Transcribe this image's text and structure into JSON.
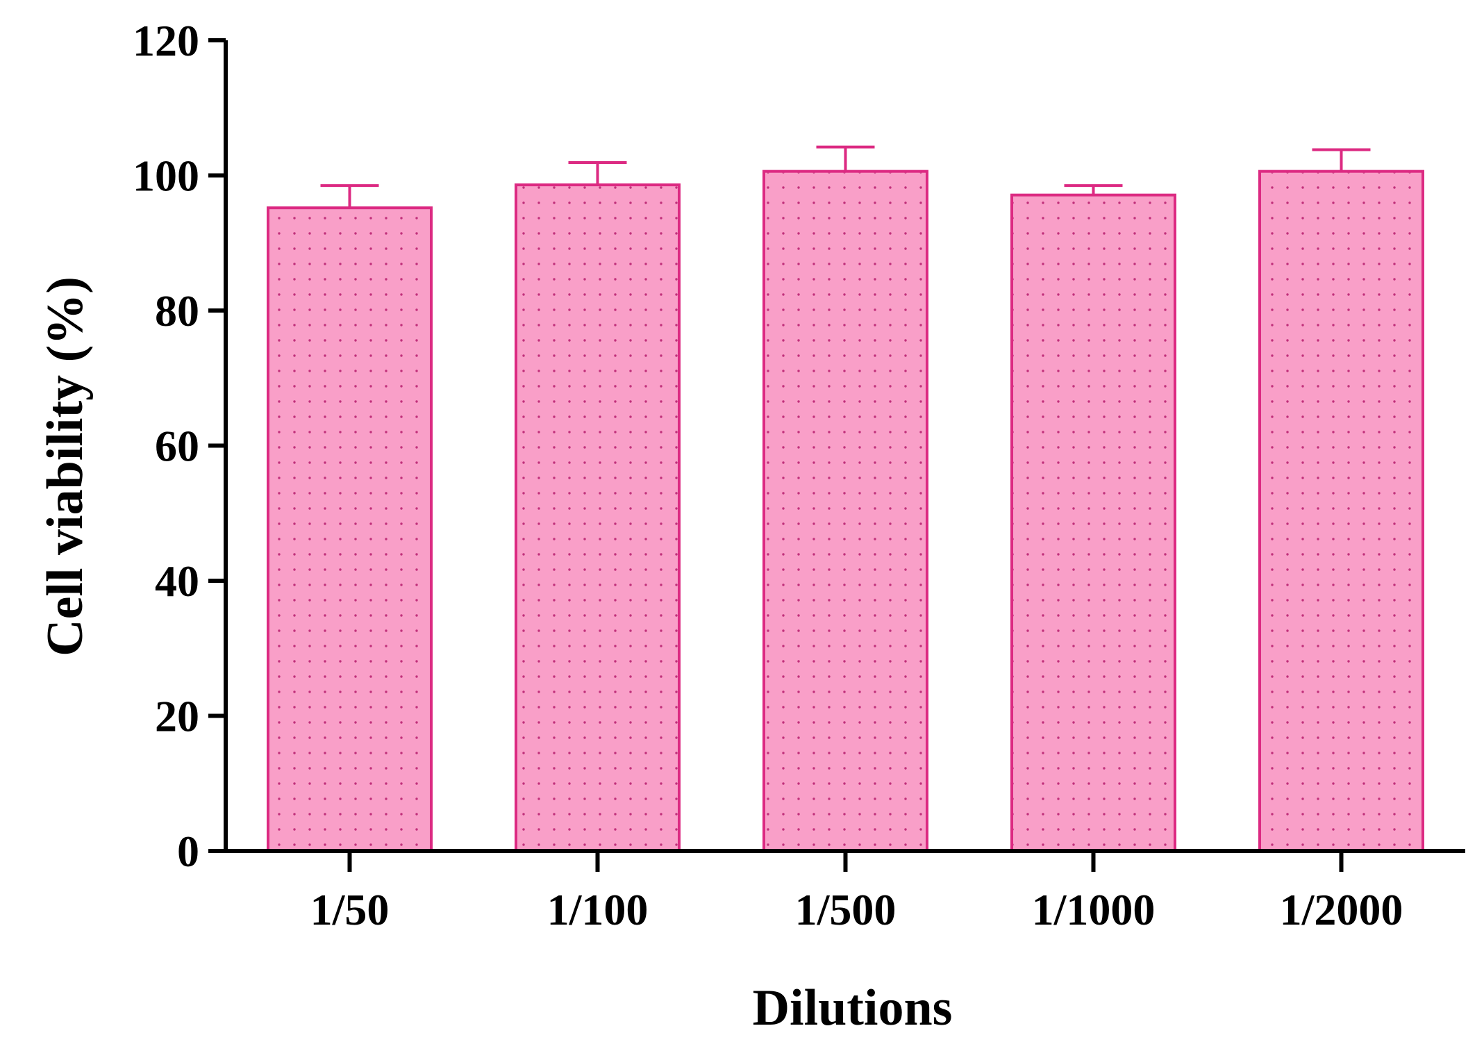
{
  "chart_data": {
    "type": "bar",
    "title": "",
    "xlabel": "Dilutions",
    "ylabel": "Cell viability (%)",
    "ylim": [
      0,
      120
    ],
    "yticks": [
      0,
      20,
      40,
      60,
      80,
      100,
      120
    ],
    "categories": [
      "1/50",
      "1/100",
      "1/500",
      "1/1000",
      "1/2000"
    ],
    "values": [
      95.2,
      98.6,
      100.6,
      97.1,
      100.6
    ],
    "errors": [
      3.3,
      3.3,
      3.6,
      1.4,
      3.2
    ],
    "grid": false,
    "legend": "none",
    "colors": {
      "bar_fill": "#f99fc8",
      "bar_stroke": "#dc2a82",
      "dots": "#c0307a",
      "axis": "#000000"
    }
  }
}
